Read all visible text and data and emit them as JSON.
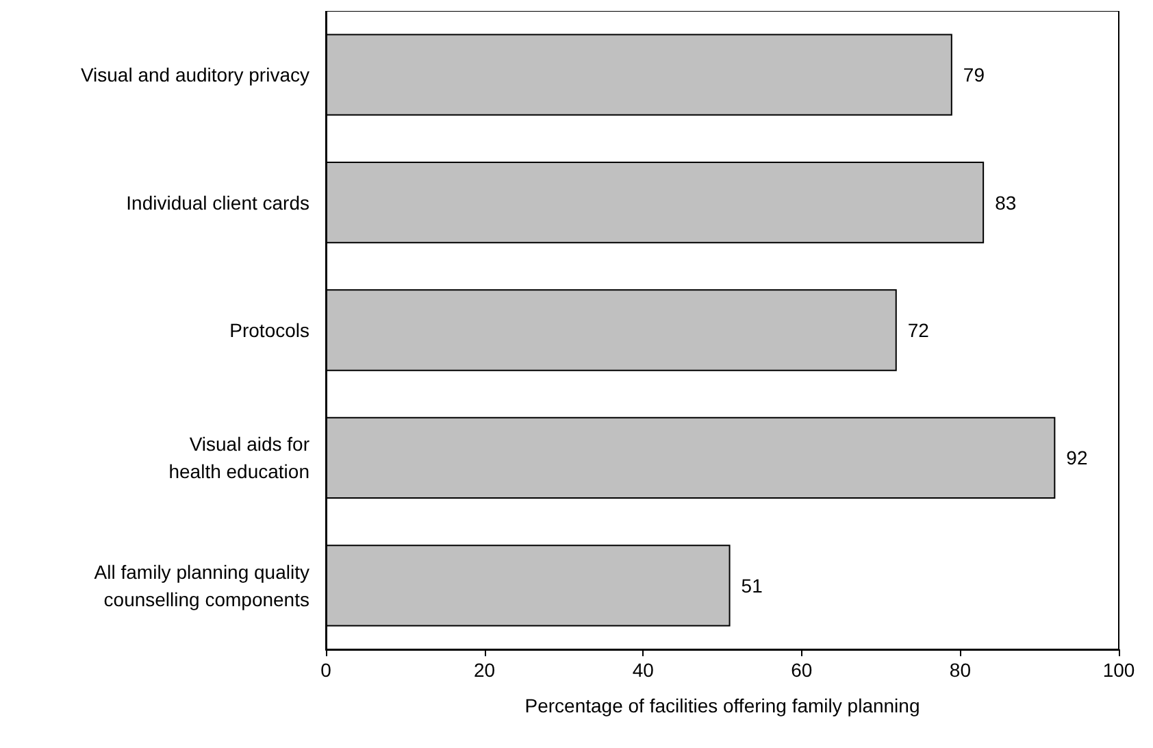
{
  "chart_data": {
    "type": "bar",
    "orientation": "horizontal",
    "categories": [
      "Visual and auditory privacy",
      "Individual client cards",
      "Protocols",
      "Visual aids for\nhealth education",
      "All family planning quality\ncounselling components"
    ],
    "values": [
      79,
      83,
      72,
      92,
      51
    ],
    "color": "#c0c0c0",
    "xlim": [
      0,
      100
    ],
    "xticks": [
      0,
      20,
      40,
      60,
      80,
      100
    ],
    "xlabel": "Percentage of facilities offering family planning",
    "data_labels": true,
    "grid": false
  }
}
